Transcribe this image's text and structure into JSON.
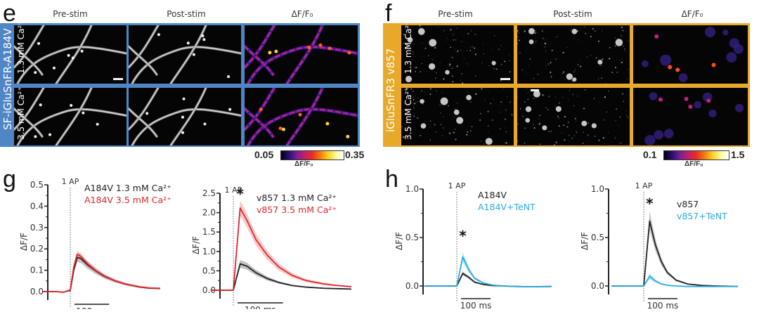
{
  "figure": {
    "panel_e": {
      "letter": "e",
      "frame_color": "#4f86c6",
      "construct_label": "SF-iGluSnFR-A184V",
      "columns": [
        "Pre-stim",
        "Post-stim",
        "ΔF/F₀"
      ],
      "rows": [
        "1.3 mM Ca²⁺",
        "3.5 mM Ca²⁺"
      ],
      "colorbar": {
        "min": "0.05",
        "max": "0.35",
        "label": "ΔF/F₀"
      }
    },
    "panel_f": {
      "letter": "f",
      "frame_color": "#e8a92a",
      "construct_label": "iGluSnFR3 v857",
      "columns": [
        "Pre-stim",
        "Post-stim",
        "ΔF/F₀"
      ],
      "rows": [
        "1.3 mM Ca²⁺",
        "3.5 mM Ca²⁺"
      ],
      "colorbar": {
        "min": "0.1",
        "max": "1.5",
        "label": "ΔF/F₀"
      }
    },
    "panel_g": {
      "letter": "g"
    },
    "panel_h": {
      "letter": "h"
    }
  },
  "chart_data": [
    {
      "id": "g-left",
      "type": "line",
      "title": "",
      "xlabel": "",
      "ylabel": "ΔF/F",
      "ylim": [
        0,
        0.5
      ],
      "yticks": [
        "0.0",
        "0.1",
        "0.2",
        "0.3",
        "0.4",
        "0.5"
      ],
      "ytick_values": [
        0,
        0.1,
        0.2,
        0.3,
        0.4,
        0.5
      ],
      "xlim_ms": [
        -80,
        260
      ],
      "stim_label": "1 AP",
      "stim_time_ms": 0,
      "scalebar_label": "100 ms",
      "scalebar_ms": 100,
      "significance": "",
      "x_ms": [
        -80,
        -40,
        -20,
        -10,
        0,
        10,
        20,
        30,
        50,
        75,
        100,
        130,
        160,
        200,
        230,
        260
      ],
      "series": [
        {
          "name": "A184V 1.3 mM Ca²⁺",
          "color": "#222222",
          "band_color": "#999999",
          "values": [
            0,
            0,
            -0.003,
            0.002,
            0.005,
            0.1,
            0.16,
            0.155,
            0.125,
            0.095,
            0.07,
            0.05,
            0.035,
            0.022,
            0.016,
            0.015
          ],
          "sem": [
            0,
            0,
            0,
            0,
            0,
            0.015,
            0.02,
            0.02,
            0.018,
            0.014,
            0.01,
            0.008,
            0.006,
            0.005,
            0.004,
            0.004
          ]
        },
        {
          "name": "A184V 3.5 mM Ca²⁺",
          "color": "#e0262b",
          "band_color": "#f0a0a0",
          "values": [
            0,
            0,
            -0.003,
            0.002,
            0.008,
            0.115,
            0.175,
            0.165,
            0.13,
            0.097,
            0.072,
            0.05,
            0.035,
            0.022,
            0.017,
            0.015
          ],
          "sem": [
            0,
            0,
            0,
            0,
            0,
            0.012,
            0.015,
            0.015,
            0.012,
            0.01,
            0.008,
            0.006,
            0.005,
            0.004,
            0.003,
            0.003
          ]
        }
      ]
    },
    {
      "id": "g-right",
      "type": "line",
      "title": "",
      "xlabel": "",
      "ylabel": "ΔF/F",
      "ylim": [
        0,
        2.5
      ],
      "yticks": [
        "0.0",
        "0.5",
        "1.0",
        "1.5",
        "2.0",
        "2.5"
      ],
      "ytick_values": [
        0,
        0.5,
        1.0,
        1.5,
        2.0,
        2.5
      ],
      "xlim_ms": [
        -50,
        260
      ],
      "stim_label": "1 AP",
      "stim_time_ms": 0,
      "scalebar_label": "100 ms",
      "scalebar_ms": 100,
      "significance": "*",
      "x_ms": [
        -50,
        -15,
        0,
        15,
        30,
        50,
        75,
        100,
        130,
        160,
        200,
        230,
        260
      ],
      "series": [
        {
          "name": "v857 1.3 mM Ca²⁺",
          "color": "#222222",
          "band_color": "#999999",
          "values": [
            0,
            0,
            0,
            0.68,
            0.62,
            0.45,
            0.3,
            0.2,
            0.12,
            0.08,
            0.05,
            0.04,
            0.03
          ],
          "sem": [
            0,
            0,
            0,
            0.1,
            0.09,
            0.07,
            0.05,
            0.03,
            0.02,
            0.015,
            0.01,
            0.01,
            0.01
          ]
        },
        {
          "name": "v857 3.5 mM Ca²⁺",
          "color": "#e0262b",
          "band_color": "#f2a6a6",
          "values": [
            0,
            0,
            0,
            2.12,
            1.8,
            1.3,
            0.9,
            0.6,
            0.38,
            0.25,
            0.16,
            0.12,
            0.09
          ],
          "sem": [
            0,
            0,
            0,
            0.2,
            0.18,
            0.15,
            0.12,
            0.09,
            0.06,
            0.04,
            0.03,
            0.02,
            0.02
          ]
        }
      ]
    },
    {
      "id": "h-left",
      "type": "line",
      "title": "",
      "xlabel": "",
      "ylabel": "ΔF/F",
      "ylim": [
        0,
        1.0
      ],
      "yticks": [
        "0.0",
        "0.5",
        "1.0"
      ],
      "ytick_values": [
        0,
        0.5,
        1.0
      ],
      "xlim_ms": [
        -110,
        320
      ],
      "stim_label": "1 AP",
      "stim_time_ms": 0,
      "scalebar_label": "100 ms",
      "scalebar_ms": 100,
      "significance": "*",
      "x_ms": [
        -110,
        -20,
        0,
        20,
        40,
        60,
        90,
        120,
        160,
        200,
        250,
        320
      ],
      "series": [
        {
          "name": "A184V",
          "color": "#222222",
          "band_color": "#9a9a9a",
          "values": [
            0,
            0,
            0,
            0.13,
            0.09,
            0.04,
            0.015,
            0.005,
            0,
            -0.005,
            -0.008,
            -0.005
          ],
          "sem": [
            0,
            0,
            0,
            0.02,
            0.015,
            0.01,
            0.005,
            0.005,
            0.003,
            0.003,
            0.003,
            0.003
          ]
        },
        {
          "name": "A184V+TeNT",
          "color": "#29abe2",
          "band_color": "#8ed3f0",
          "values": [
            0,
            0,
            0,
            0.3,
            0.17,
            0.08,
            0.03,
            0.01,
            0,
            -0.005,
            -0.008,
            -0.005
          ],
          "sem": [
            0,
            0,
            0,
            0.05,
            0.03,
            0.015,
            0.008,
            0.005,
            0.003,
            0.003,
            0.003,
            0.003
          ]
        }
      ]
    },
    {
      "id": "h-right",
      "type": "line",
      "title": "",
      "xlabel": "",
      "ylabel": "ΔF/F",
      "ylim": [
        0,
        1.0
      ],
      "yticks": [
        "0.0",
        "0.5",
        "1.0"
      ],
      "ytick_values": [
        0,
        0.5,
        1.0
      ],
      "xlim_ms": [
        -110,
        320
      ],
      "stim_label": "1 AP",
      "stim_time_ms": 0,
      "scalebar_label": "100 ms",
      "scalebar_ms": 100,
      "significance": "*",
      "x_ms": [
        -110,
        -20,
        0,
        20,
        40,
        60,
        80,
        110,
        150,
        200,
        250,
        320
      ],
      "series": [
        {
          "name": "v857",
          "color": "#222222",
          "band_color": "#a0a0a0",
          "values": [
            0,
            0,
            0,
            0.67,
            0.42,
            0.25,
            0.14,
            0.06,
            0.02,
            0.005,
            0,
            -0.005
          ],
          "sem": [
            0,
            0,
            0,
            0.1,
            0.06,
            0.04,
            0.02,
            0.01,
            0.005,
            0.003,
            0.003,
            0.003
          ]
        },
        {
          "name": "v857+TeNT",
          "color": "#29abe2",
          "band_color": "#8ed3f0",
          "values": [
            0,
            0,
            0,
            0.1,
            0.05,
            0.02,
            0.008,
            0,
            -0.005,
            -0.005,
            -0.005,
            -0.005
          ],
          "sem": [
            0,
            0,
            0,
            0.03,
            0.015,
            0.008,
            0.005,
            0.003,
            0.003,
            0.003,
            0.003,
            0.003
          ]
        }
      ]
    }
  ]
}
